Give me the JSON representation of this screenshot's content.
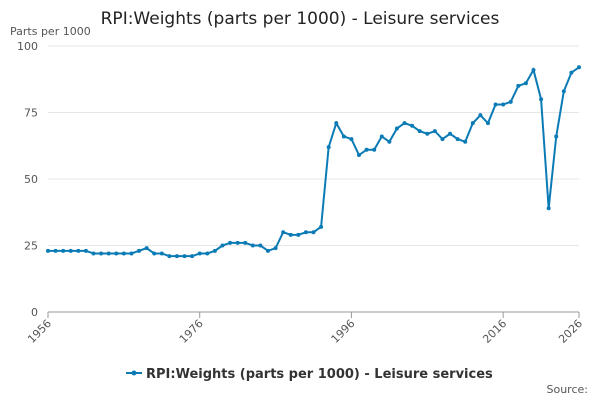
{
  "chart_data": {
    "type": "line",
    "title": "RPI:Weights (parts per 1000) - Leisure services",
    "y_label": "Parts per 1000",
    "source": "Source:",
    "x": [
      1956,
      1957,
      1958,
      1959,
      1960,
      1961,
      1962,
      1963,
      1964,
      1965,
      1966,
      1967,
      1968,
      1969,
      1970,
      1971,
      1972,
      1973,
      1974,
      1975,
      1976,
      1977,
      1978,
      1979,
      1980,
      1981,
      1982,
      1983,
      1984,
      1985,
      1986,
      1987,
      1988,
      1989,
      1990,
      1991,
      1992,
      1993,
      1994,
      1995,
      1996,
      1997,
      1998,
      1999,
      2000,
      2001,
      2002,
      2003,
      2004,
      2005,
      2006,
      2007,
      2008,
      2009,
      2010,
      2011,
      2012,
      2013,
      2014,
      2015,
      2016,
      2017,
      2018,
      2019,
      2020,
      2021,
      2022,
      2023,
      2024,
      2025,
      2026
    ],
    "series": [
      {
        "name": "RPI:Weights (parts per 1000) - Leisure services",
        "color": "#0b7bb5",
        "values": [
          23,
          23,
          23,
          23,
          23,
          23,
          22,
          22,
          22,
          22,
          22,
          22,
          23,
          24,
          22,
          22,
          21,
          21,
          21,
          21,
          22,
          22,
          23,
          25,
          26,
          26,
          26,
          25,
          25,
          23,
          24,
          30,
          29,
          29,
          30,
          30,
          32,
          62,
          71,
          66,
          65,
          59,
          61,
          61,
          66,
          64,
          69,
          71,
          70,
          68,
          67,
          68,
          65,
          67,
          65,
          64,
          71,
          74,
          71,
          78,
          78,
          79,
          85,
          86,
          91,
          80,
          39,
          66,
          83,
          90,
          92
        ]
      }
    ],
    "xlim": [
      1956,
      2026
    ],
    "xticks": [
      1956,
      1976,
      1996,
      2016,
      2026
    ],
    "ylim": [
      0,
      100
    ],
    "yticks": [
      0,
      25,
      50,
      75,
      100
    ],
    "grid": true
  }
}
